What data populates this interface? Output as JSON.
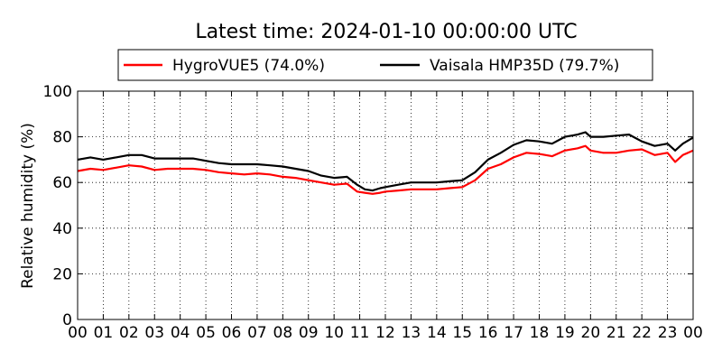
{
  "chart_data": {
    "type": "line",
    "title": "Latest time: 2024-01-10 00:00:00 UTC",
    "xlabel": "",
    "ylabel": "Relative humidity (%)",
    "xlim": [
      0,
      24
    ],
    "ylim": [
      0,
      100
    ],
    "x_tick_labels": [
      "00",
      "01",
      "02",
      "03",
      "04",
      "05",
      "06",
      "07",
      "08",
      "09",
      "10",
      "11",
      "12",
      "13",
      "14",
      "15",
      "16",
      "17",
      "18",
      "19",
      "20",
      "21",
      "22",
      "23",
      "00"
    ],
    "y_ticks": [
      0,
      20,
      40,
      60,
      80,
      100
    ],
    "grid": true,
    "legend_position": "top",
    "series": [
      {
        "name": "HygroVUE5 (74.0%)",
        "color": "#ff0000",
        "x": [
          0,
          0.5,
          1,
          1.5,
          2,
          2.5,
          3,
          3.5,
          4,
          4.5,
          5,
          5.5,
          6,
          6.5,
          7,
          7.5,
          8,
          8.5,
          9,
          9.5,
          10,
          10.5,
          10.9,
          11.2,
          11.5,
          11.8,
          12,
          12.5,
          13,
          13.5,
          14,
          14.5,
          15,
          15.5,
          16,
          16.5,
          17,
          17.5,
          18,
          18.5,
          19,
          19.5,
          19.8,
          20,
          20.5,
          21,
          21.5,
          22,
          22.5,
          23,
          23.3,
          23.6,
          24
        ],
        "y": [
          65,
          66,
          65.5,
          66.5,
          67.5,
          67,
          65.5,
          66,
          66,
          66,
          65.5,
          64.5,
          64,
          63.5,
          64,
          63.5,
          62.5,
          62,
          61,
          60,
          59,
          59.5,
          56,
          55.5,
          55,
          55.5,
          56,
          56.5,
          57,
          57,
          57,
          57.5,
          58,
          61,
          66,
          68,
          71,
          73,
          72.5,
          71.5,
          74,
          75,
          76,
          74,
          73,
          73,
          74,
          74.5,
          72,
          73,
          69,
          72,
          74
        ]
      },
      {
        "name": "Vaisala HMP35D (79.7%)",
        "color": "#000000",
        "x": [
          0,
          0.5,
          1,
          1.5,
          2,
          2.5,
          3,
          3.5,
          4,
          4.5,
          5,
          5.5,
          6,
          6.5,
          7,
          7.5,
          8,
          8.5,
          9,
          9.5,
          10,
          10.5,
          10.9,
          11.2,
          11.5,
          11.8,
          12,
          12.5,
          13,
          13.5,
          14,
          14.5,
          15,
          15.5,
          16,
          16.5,
          17,
          17.5,
          18,
          18.5,
          19,
          19.5,
          19.8,
          20,
          20.5,
          21,
          21.5,
          22,
          22.5,
          23,
          23.3,
          23.6,
          24
        ],
        "y": [
          70,
          71,
          70,
          71,
          72,
          72,
          70.5,
          70.5,
          70.5,
          70.5,
          69.5,
          68.5,
          68,
          68,
          68,
          67.5,
          67,
          66,
          65,
          63,
          62,
          62.5,
          59,
          57,
          56.5,
          57.5,
          58,
          59,
          60,
          60,
          60,
          60.5,
          61,
          64.5,
          70,
          73,
          76.5,
          78.5,
          78,
          77,
          80,
          81,
          82,
          80,
          80,
          80.5,
          81,
          78,
          76,
          77,
          74,
          77,
          79.7
        ]
      }
    ]
  }
}
